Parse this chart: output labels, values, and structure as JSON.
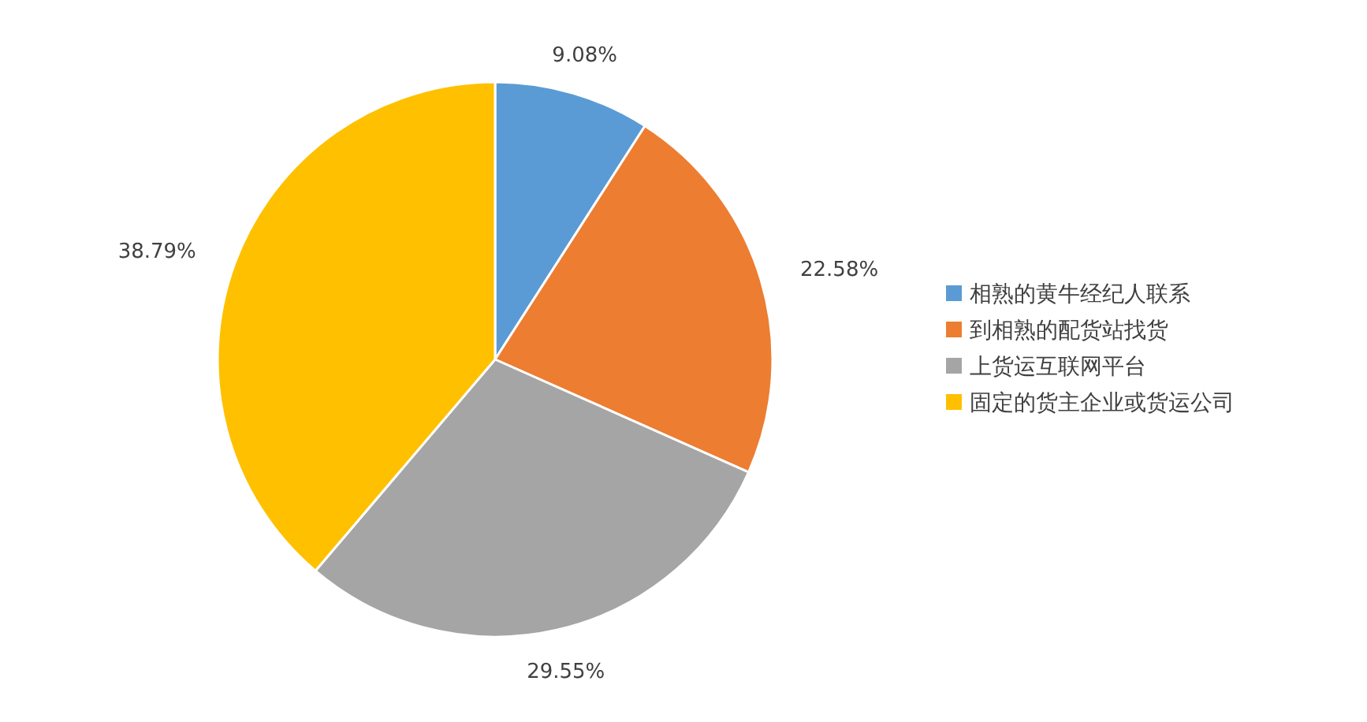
{
  "chart_data": {
    "type": "pie",
    "categories": [
      "相熟的黄牛经纪人联系",
      "到相熟的配货站找货",
      "上货运互联网平台",
      "固定的货主企业或货运公司"
    ],
    "values": [
      9.08,
      22.58,
      29.55,
      38.79
    ],
    "colors": [
      "#5b9bd5",
      "#ed7d31",
      "#a5a5a5",
      "#ffc000"
    ],
    "value_labels": [
      "9.08%",
      "22.58%",
      "29.55%",
      "38.79%"
    ],
    "legend": "right"
  }
}
